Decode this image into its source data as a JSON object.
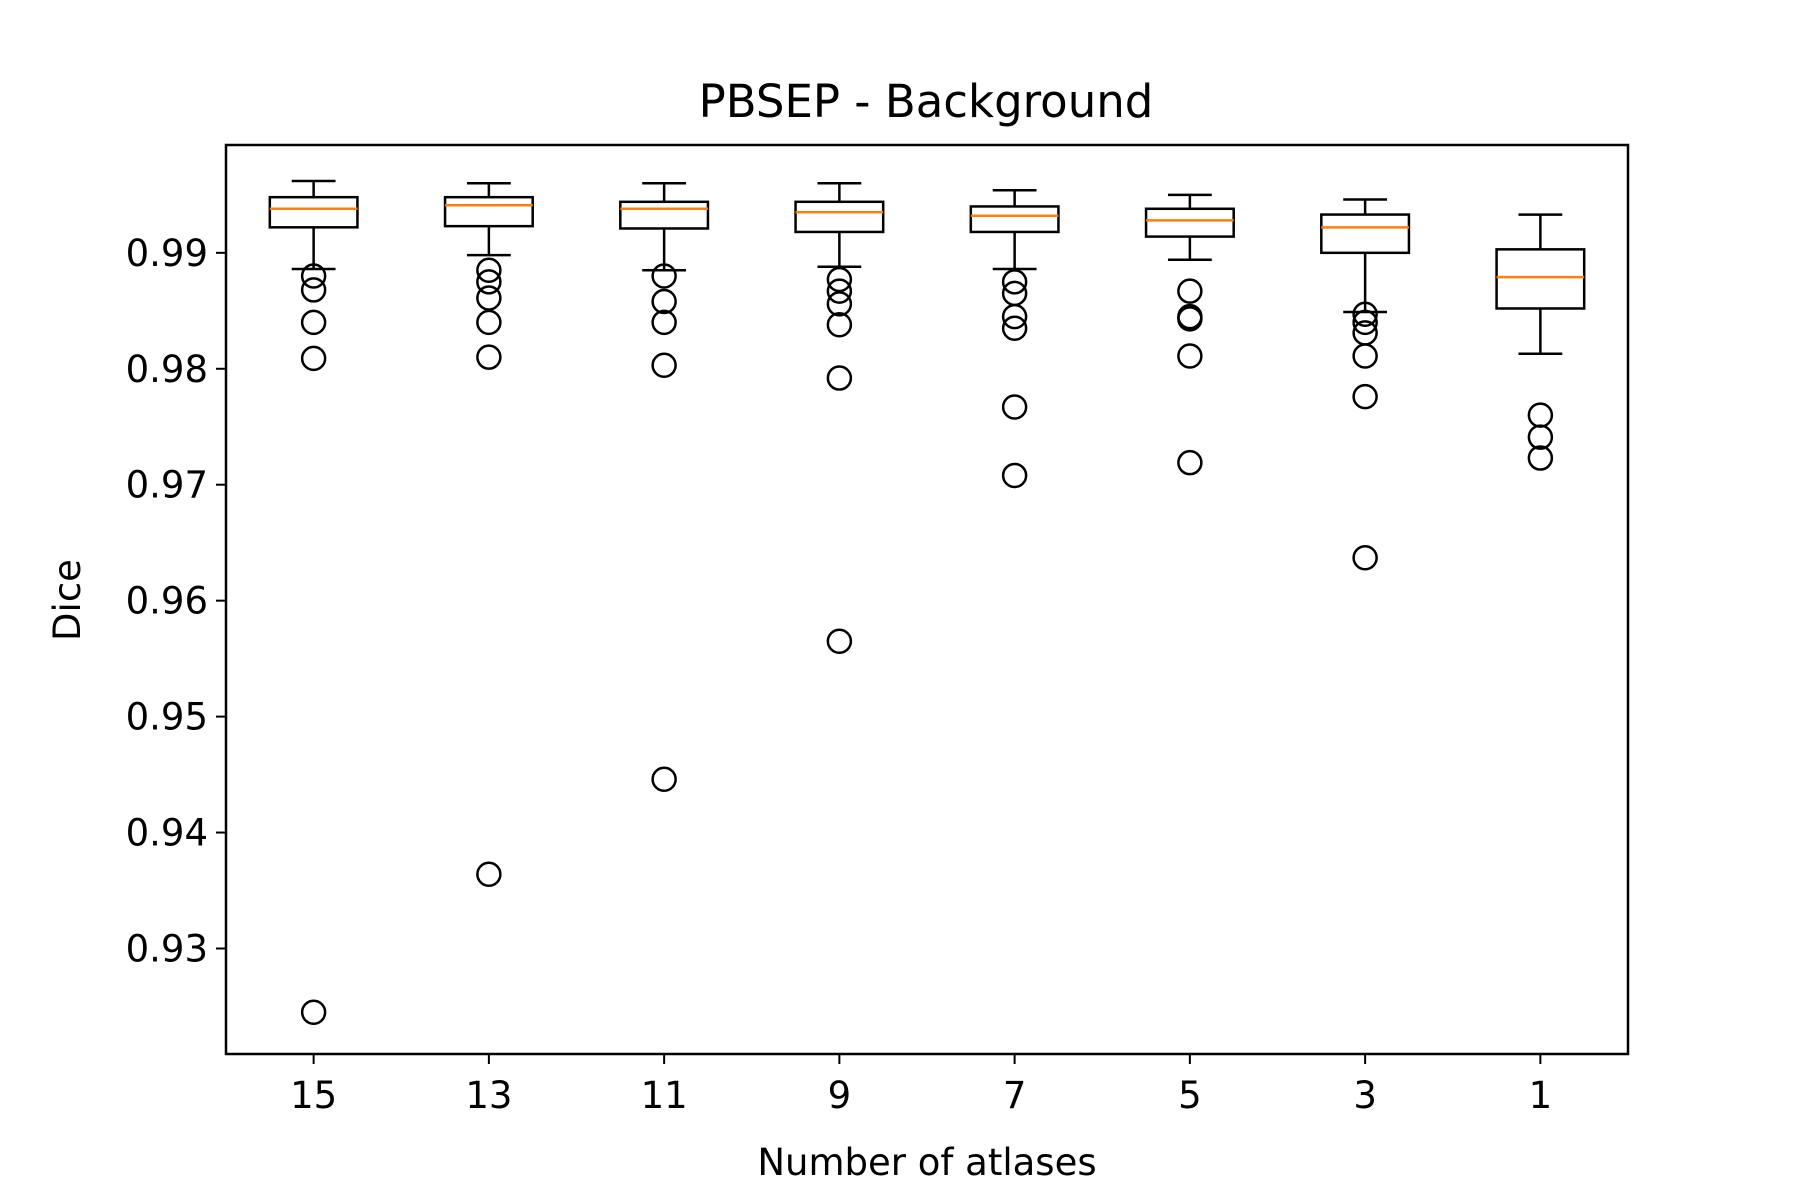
{
  "chart_data": {
    "type": "box",
    "title": "PBSEP - Background",
    "xlabel": "Number of atlases",
    "ylabel": "Dice",
    "ylim": [
      0.9209,
      0.9993
    ],
    "yticks": [
      0.93,
      0.94,
      0.95,
      0.96,
      0.97,
      0.98,
      0.99
    ],
    "ytick_labels": [
      "0.93",
      "0.94",
      "0.95",
      "0.96",
      "0.97",
      "0.98",
      "0.99"
    ],
    "categories": [
      "15",
      "13",
      "11",
      "9",
      "7",
      "5",
      "3",
      "1"
    ],
    "grid": false,
    "colors": {
      "box": "#000000",
      "median": "#ff7f0e",
      "flier": "#000000"
    },
    "boxes": [
      {
        "label": "15",
        "whisker_low": 0.9886,
        "q1": 0.9922,
        "median": 0.9938,
        "q3": 0.9948,
        "whisker_high": 0.9962,
        "fliers": [
          0.988,
          0.9868,
          0.984,
          0.9809,
          0.9245
        ]
      },
      {
        "label": "13",
        "whisker_low": 0.9898,
        "q1": 0.9923,
        "median": 0.9941,
        "q3": 0.9948,
        "whisker_high": 0.996,
        "fliers": [
          0.9885,
          0.9875,
          0.9861,
          0.984,
          0.981,
          0.9364
        ]
      },
      {
        "label": "11",
        "whisker_low": 0.9885,
        "q1": 0.9921,
        "median": 0.9938,
        "q3": 0.9944,
        "whisker_high": 0.996,
        "fliers": [
          0.988,
          0.9858,
          0.984,
          0.9803,
          0.9446
        ]
      },
      {
        "label": "9",
        "whisker_low": 0.9888,
        "q1": 0.9918,
        "median": 0.9935,
        "q3": 0.9944,
        "whisker_high": 0.996,
        "fliers": [
          0.9877,
          0.9867,
          0.9856,
          0.9838,
          0.9792,
          0.9565
        ]
      },
      {
        "label": "7",
        "whisker_low": 0.9886,
        "q1": 0.9918,
        "median": 0.9932,
        "q3": 0.994,
        "whisker_high": 0.9954,
        "fliers": [
          0.9875,
          0.9865,
          0.9845,
          0.9835,
          0.9767,
          0.9708
        ]
      },
      {
        "label": "5",
        "whisker_low": 0.9894,
        "q1": 0.9914,
        "median": 0.9928,
        "q3": 0.9938,
        "whisker_high": 0.995,
        "fliers": [
          0.9867,
          0.9845,
          0.9843,
          0.9811,
          0.9719
        ]
      },
      {
        "label": "3",
        "whisker_low": 0.9849,
        "q1": 0.99,
        "median": 0.9922,
        "q3": 0.9933,
        "whisker_high": 0.9946,
        "fliers": [
          0.9847,
          0.984,
          0.9831,
          0.9811,
          0.9776,
          0.9637
        ]
      },
      {
        "label": "1",
        "whisker_low": 0.9813,
        "q1": 0.9852,
        "median": 0.9879,
        "q3": 0.9903,
        "whisker_high": 0.9933,
        "fliers": [
          0.976,
          0.9741,
          0.9723
        ]
      }
    ]
  }
}
